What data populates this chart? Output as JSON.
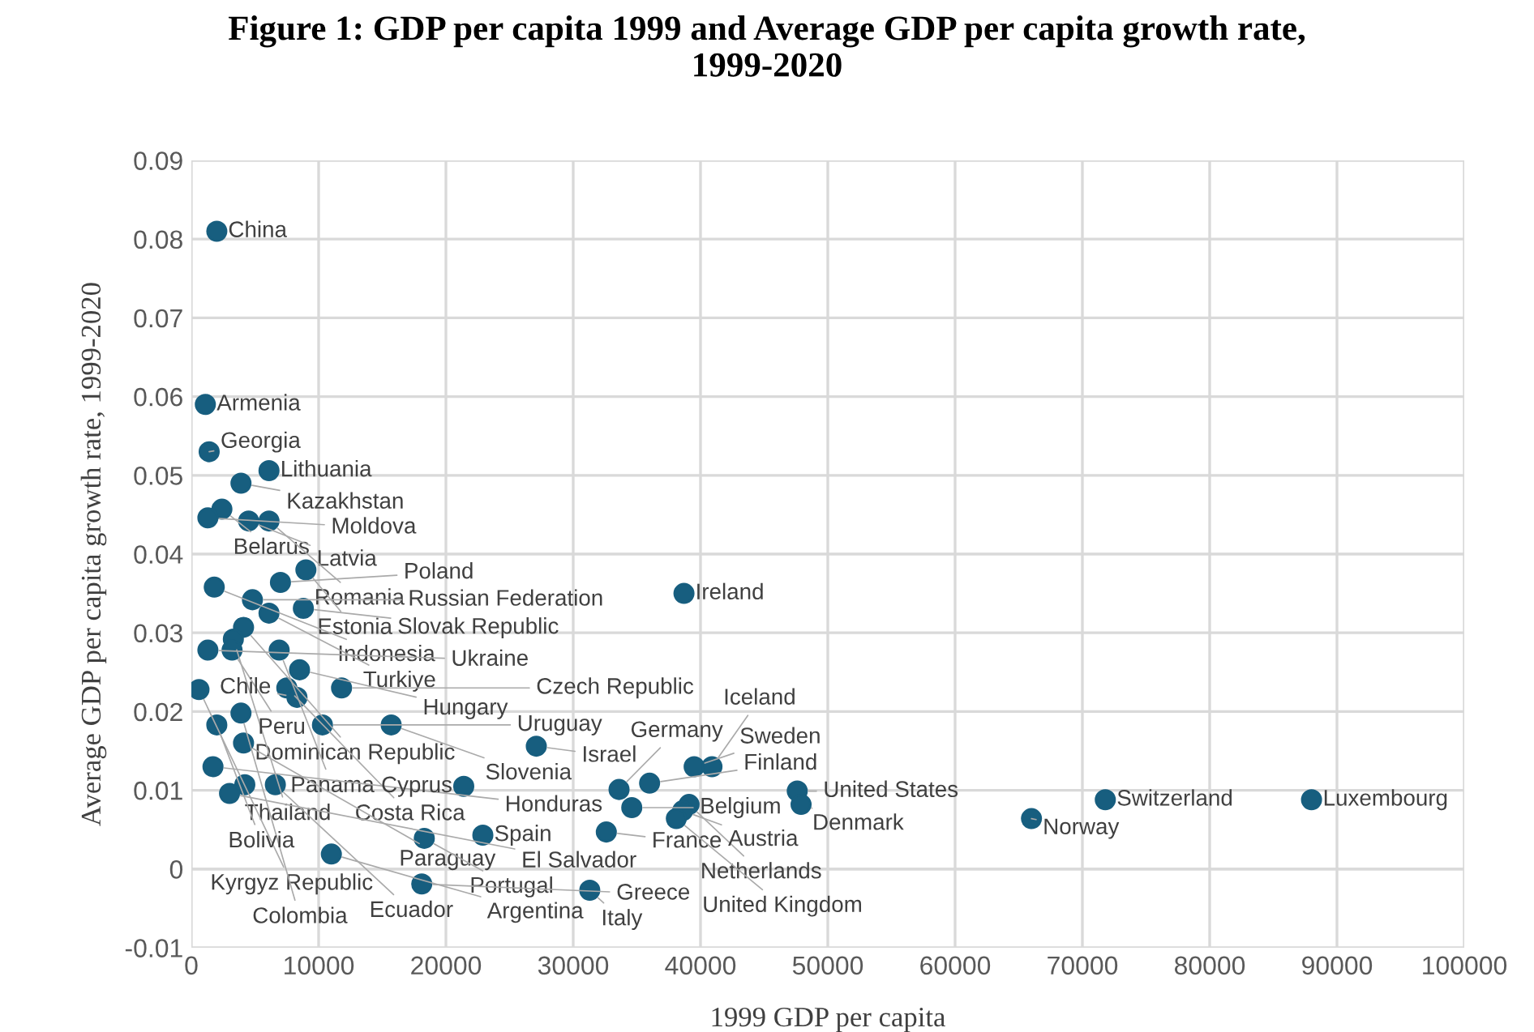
{
  "chart_data": {
    "type": "scatter",
    "title": "Figure 1: GDP per capita 1999 and Average GDP per capita growth rate, 1999-2020",
    "xlabel": "1999 GDP per capita",
    "ylabel": "Average GDP per capita growth rate, 1999-2020",
    "series": [
      {
        "color": "#175e7f",
        "x": [
          2000,
          1100,
          1400,
          6100,
          3900,
          2400,
          1300,
          4500,
          6100,
          9000,
          7000,
          1800,
          4800,
          8800,
          6100,
          4100,
          3300,
          3200,
          1300,
          6900,
          8500,
          600,
          7500,
          8300,
          11800,
          3900,
          2000,
          10300,
          15700,
          4100,
          27100,
          1700,
          4200,
          6600,
          3000,
          21400,
          18300,
          22900,
          11000,
          18100,
          31300,
          32600,
          33600,
          34600,
          36000,
          39500,
          40900,
          47600,
          47900,
          39100,
          38600,
          38100,
          38700,
          66000,
          71800,
          88000
        ],
        "values": [
          0.081,
          0.059,
          0.053,
          0.0506,
          0.049,
          0.0457,
          0.0446,
          0.0442,
          0.0442,
          0.038,
          0.0364,
          0.0358,
          0.0342,
          0.0331,
          0.0325,
          0.0307,
          0.0292,
          0.0278,
          0.0278,
          0.0278,
          0.0253,
          0.0228,
          0.023,
          0.0218,
          0.023,
          0.0198,
          0.0183,
          0.0183,
          0.0183,
          0.016,
          0.0156,
          0.013,
          0.0107,
          0.0107,
          0.0096,
          0.0105,
          0.0039,
          0.0043,
          0.0019,
          -0.0019,
          -0.0027,
          0.0047,
          0.0101,
          0.0078,
          0.0109,
          0.013,
          0.013,
          0.0099,
          0.0082,
          0.0082,
          0.0074,
          0.0064,
          0.035,
          0.0064,
          0.0088,
          0.0088
        ]
      }
    ],
    "annotations": [
      {
        "text": "China",
        "x": 2000,
        "y": 0.081
      },
      {
        "text": "Armenia",
        "x": 1100,
        "y": 0.059
      },
      {
        "text": "Georgia",
        "x": 1400,
        "y": 0.053
      },
      {
        "text": "Lithuania",
        "x": 6100,
        "y": 0.0506
      },
      {
        "text": "Kazakhstan",
        "x": 3900,
        "y": 0.049
      },
      {
        "text": "Belarus",
        "x": 2400,
        "y": 0.0457
      },
      {
        "text": "Moldova",
        "x": 1300,
        "y": 0.0446
      },
      {
        "text": "Latvia",
        "x": 4500,
        "y": 0.0442
      },
      {
        "text": "Romania",
        "x": 6100,
        "y": 0.0442
      },
      {
        "text": "Estonia",
        "x": 9000,
        "y": 0.038
      },
      {
        "text": "Poland",
        "x": 7000,
        "y": 0.0364
      },
      {
        "text": "Indonesia",
        "x": 1800,
        "y": 0.0358
      },
      {
        "text": "Russian Federation",
        "x": 4800,
        "y": 0.0342
      },
      {
        "text": "Slovak Republic",
        "x": 8800,
        "y": 0.0331
      },
      {
        "text": "Turkiye",
        "x": 6100,
        "y": 0.0325
      },
      {
        "text": "Dominican Republic",
        "x": 4100,
        "y": 0.0307
      },
      {
        "text": "Thailand",
        "x": 3300,
        "y": 0.0292
      },
      {
        "text": "Peru",
        "x": 3200,
        "y": 0.0278
      },
      {
        "text": "Ukraine",
        "x": 1300,
        "y": 0.0278
      },
      {
        "text": "Panama",
        "x": 6900,
        "y": 0.0278
      },
      {
        "text": "Hungary",
        "x": 8500,
        "y": 0.0253
      },
      {
        "text": "Kyrgyz Republic",
        "x": 600,
        "y": 0.0228
      },
      {
        "text": "Costa Rica",
        "x": 7500,
        "y": 0.023
      },
      {
        "text": "Chile",
        "x": 8300,
        "y": 0.0218
      },
      {
        "text": "Czech Republic",
        "x": 11800,
        "y": 0.023
      },
      {
        "text": "Colombia",
        "x": 3900,
        "y": 0.0198
      },
      {
        "text": "Bolivia",
        "x": 2000,
        "y": 0.0183
      },
      {
        "text": "Uruguay",
        "x": 10300,
        "y": 0.0183
      },
      {
        "text": "Slovenia",
        "x": 15700,
        "y": 0.0183
      },
      {
        "text": "Paraguay",
        "x": 4100,
        "y": 0.016
      },
      {
        "text": "Israel",
        "x": 27100,
        "y": 0.0156
      },
      {
        "text": "Honduras",
        "x": 1700,
        "y": 0.013
      },
      {
        "text": "Ecuador",
        "x": 6600,
        "y": 0.0107
      },
      {
        "text": "El Salvador",
        "x": 3000,
        "y": 0.0096
      },
      {
        "text": "Cyprus",
        "x": 21400,
        "y": 0.0105
      },
      {
        "text": "Portugal",
        "x": 18300,
        "y": 0.0039
      },
      {
        "text": "Spain",
        "x": 22900,
        "y": 0.0043
      },
      {
        "text": "Argentina",
        "x": 11000,
        "y": 0.0019
      },
      {
        "text": "Greece",
        "x": 18100,
        "y": -0.0019
      },
      {
        "text": "Italy",
        "x": 31300,
        "y": -0.0027
      },
      {
        "text": "France",
        "x": 32600,
        "y": 0.0047
      },
      {
        "text": "Germany",
        "x": 33600,
        "y": 0.0101
      },
      {
        "text": "Belgium",
        "x": 34600,
        "y": 0.0078
      },
      {
        "text": "Finland",
        "x": 36000,
        "y": 0.0109
      },
      {
        "text": "Sweden",
        "x": 39500,
        "y": 0.013
      },
      {
        "text": "Iceland",
        "x": 40900,
        "y": 0.013
      },
      {
        "text": "United States",
        "x": 47600,
        "y": 0.0099
      },
      {
        "text": "Denmark",
        "x": 47900,
        "y": 0.0082
      },
      {
        "text": "Netherlands",
        "x": 39100,
        "y": 0.0082
      },
      {
        "text": "Austria",
        "x": 38600,
        "y": 0.0074
      },
      {
        "text": "United Kingdom",
        "x": 38100,
        "y": 0.0064
      },
      {
        "text": "Ireland",
        "x": 38700,
        "y": 0.035
      },
      {
        "text": "Norway",
        "x": 66000,
        "y": 0.0064
      },
      {
        "text": "Switzerland",
        "x": 71800,
        "y": 0.0088
      },
      {
        "text": "Luxembourg",
        "x": 88000,
        "y": 0.0088
      }
    ],
    "xlim": [
      0,
      100000
    ],
    "xticks": [
      0,
      10000,
      20000,
      30000,
      40000,
      50000,
      60000,
      70000,
      80000,
      90000,
      100000
    ],
    "ylim": [
      -0.01,
      0.09
    ],
    "yticks": [
      {
        "value": -0.01,
        "label": "-0.01"
      },
      0,
      0.01,
      0.02,
      0.03,
      0.04,
      0.05,
      0.06,
      0.07,
      0.08,
      0.09
    ],
    "grid": true,
    "marker": "circle",
    "legend": false
  }
}
